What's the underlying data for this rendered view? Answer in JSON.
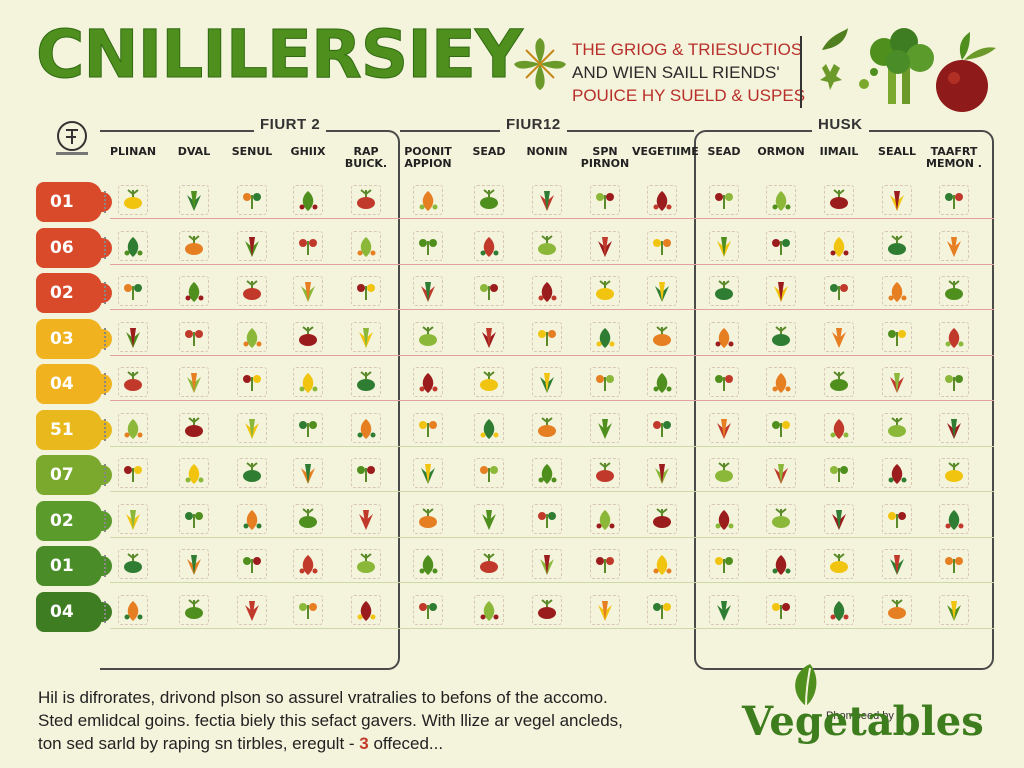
{
  "header": {
    "title": "CNILILERSIEY",
    "tagline": [
      "THE GRIOG & TRIESUCTIOS",
      "AND WIEN SAILL RIENDS'",
      "POUICE HY SUELD & USPES"
    ]
  },
  "panels": [
    {
      "title": "FIURT 2",
      "columns": [
        "PLINAN",
        "DVAL",
        "SENUL",
        "GHIIX",
        "RAP BUICK."
      ]
    },
    {
      "title": "FIUR12",
      "columns": [
        "POONIT APPION",
        "SEAD",
        "NONIN",
        "SPN PIRNON",
        "VEGETIIME"
      ]
    },
    {
      "title": "HUSK",
      "columns": [
        "SEAD",
        "ORMON",
        "IIMAIL",
        "SEALL",
        "TAAFRT MEMON ."
      ]
    }
  ],
  "rows": [
    {
      "label": "01",
      "color": "#d84a2a"
    },
    {
      "label": "06",
      "color": "#d84a2a"
    },
    {
      "label": "02",
      "color": "#d84a2a"
    },
    {
      "label": "03",
      "color": "#f0b21e"
    },
    {
      "label": "04",
      "color": "#f0b21e"
    },
    {
      "label": "51",
      "color": "#e8b81c"
    },
    {
      "label": "07",
      "color": "#7aa92e"
    },
    {
      "label": "02",
      "color": "#5b9b2c"
    },
    {
      "label": "01",
      "color": "#4a8c28"
    },
    {
      "label": "04",
      "color": "#3f7d22"
    }
  ],
  "icon_palette": [
    "#9b1c1c",
    "#c0392b",
    "#e67e22",
    "#f1c40f",
    "#8cb83a",
    "#4f8f1e",
    "#2e7d32"
  ],
  "footer": {
    "line1": "Hil is difrorates, drivond plson so assurel vratralies to befons of the accomo.",
    "line2": "Sted emlidcal goins. fectia biely this sefact gavers. With llize ar vegel ancleds,",
    "line3_pre": "ton sed sarld by raping sn tirbles, eregult - ",
    "line3_num": "3",
    "line3_post": " offeced..."
  },
  "brand": {
    "sub": "Phomoeed by",
    "name": "Vegetables"
  }
}
